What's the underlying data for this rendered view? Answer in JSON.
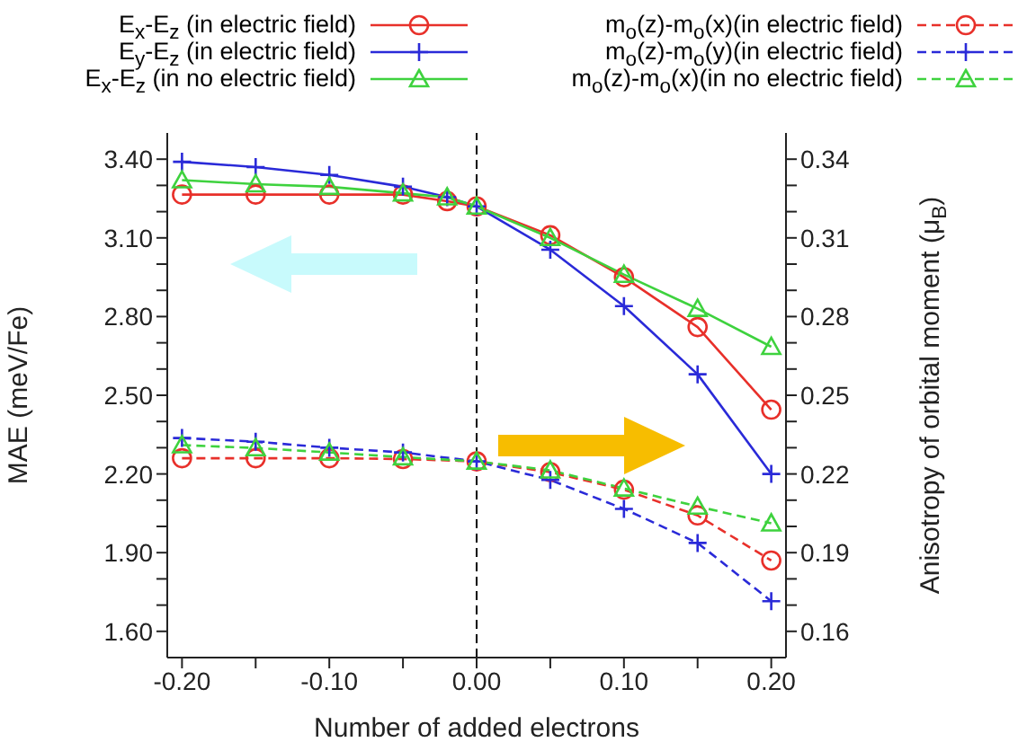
{
  "chart_data": {
    "type": "line",
    "xlabel": "Number of added electrons",
    "ylabel": "MAE (meV/Fe)",
    "y2label": "Anisotropy of orbital moment (μ$_{B}$)",
    "legend": "top",
    "xlim": [
      -0.21,
      0.21
    ],
    "xticks": [
      {
        "value": -0.2,
        "label": "-0.20"
      },
      {
        "value": -0.15,
        "label": null
      },
      {
        "value": -0.1,
        "label": "-0.10"
      },
      {
        "value": -0.05,
        "label": null
      },
      {
        "value": 0,
        "label": "0.00"
      },
      {
        "value": 0.05,
        "label": null
      },
      {
        "value": 0.1,
        "label": "0.10"
      },
      {
        "value": 0.15,
        "label": null
      },
      {
        "value": 0.2,
        "label": "0.20"
      }
    ],
    "ylim": [
      1.5,
      3.5
    ],
    "yticks": [
      {
        "value": 1.6,
        "label": "1.60"
      },
      {
        "value": 1.7,
        "label": null
      },
      {
        "value": 1.8,
        "label": null
      },
      {
        "value": 1.9,
        "label": "1.90"
      },
      {
        "value": 2.0,
        "label": null
      },
      {
        "value": 2.1,
        "label": null
      },
      {
        "value": 2.2,
        "label": "2.20"
      },
      {
        "value": 2.3,
        "label": null
      },
      {
        "value": 2.4,
        "label": null
      },
      {
        "value": 2.5,
        "label": "2.50"
      },
      {
        "value": 2.6,
        "label": null
      },
      {
        "value": 2.7,
        "label": null
      },
      {
        "value": 2.8,
        "label": "2.80"
      },
      {
        "value": 2.9,
        "label": null
      },
      {
        "value": 3.0,
        "label": null
      },
      {
        "value": 3.1,
        "label": "3.10"
      },
      {
        "value": 3.2,
        "label": null
      },
      {
        "value": 3.3,
        "label": null
      },
      {
        "value": 3.4,
        "label": "3.40"
      }
    ],
    "y2lim": [
      0.15,
      0.35
    ],
    "y2ticks": [
      0.16,
      {
        "value": 0.17,
        "label": null
      },
      {
        "value": 0.18,
        "label": null
      },
      0.19,
      {
        "value": 0.2,
        "label": null
      },
      {
        "value": 0.21,
        "label": null
      },
      0.22,
      {
        "value": 0.23,
        "label": null
      },
      {
        "value": 0.24,
        "label": null
      },
      0.25,
      {
        "value": 0.26,
        "label": null
      },
      {
        "value": 0.27,
        "label": null
      },
      0.28,
      {
        "value": 0.29,
        "label": null
      },
      {
        "value": 0.3,
        "label": null
      },
      0.31,
      {
        "value": 0.32,
        "label": null
      },
      {
        "value": 0.33,
        "label": null
      },
      0.34
    ],
    "ref_lines": [
      {
        "axis": "x",
        "value": 0,
        "color": "#000000",
        "line_style": "dashed"
      }
    ],
    "series": [
      {
        "name": "E$_{x}$-E$_{z}$ (in electric field)",
        "color": "#e8302a",
        "marker": "circle",
        "line_style": "solid",
        "x": [
          -0.2,
          -0.15,
          -0.1,
          -0.05,
          -0.02,
          0,
          0.05,
          0.1,
          0.15,
          0.2
        ],
        "values": [
          3.265,
          3.265,
          3.265,
          3.265,
          3.24,
          3.22,
          3.11,
          2.95,
          2.76,
          2.445
        ]
      },
      {
        "name": "E$_{y}$-E$_{z}$ (in electric field)",
        "color": "#2a2ad8",
        "marker": "cross",
        "line_style": "solid",
        "x": [
          -0.2,
          -0.15,
          -0.1,
          -0.05,
          -0.02,
          0,
          0.05,
          0.1,
          0.15,
          0.2
        ],
        "values": [
          3.39,
          3.37,
          3.34,
          3.295,
          3.255,
          3.22,
          3.055,
          2.84,
          2.58,
          2.2
        ]
      },
      {
        "name": "E$_{x}$-E$_{z}$ (in no electric field)",
        "color": "#3ed23e",
        "marker": "triangle",
        "line_style": "solid",
        "x": [
          -0.2,
          -0.15,
          -0.1,
          -0.05,
          -0.02,
          0,
          0.05,
          0.1,
          0.15,
          0.2
        ],
        "values": [
          3.32,
          3.305,
          3.295,
          3.27,
          3.255,
          3.22,
          3.1,
          2.96,
          2.83,
          2.685
        ]
      },
      {
        "name": "m$_{o}$(z)-m$_{o}$(x)(in electric field)",
        "color": "#e8302a",
        "marker": "circle",
        "line_style": "dashed",
        "axis": "y2",
        "x": [
          -0.2,
          -0.15,
          -0.1,
          -0.05,
          0,
          0.05,
          0.1,
          0.15,
          0.2
        ],
        "values": [
          0.226,
          0.226,
          0.226,
          0.2257,
          0.2248,
          0.2207,
          0.214,
          0.2042,
          0.187
        ]
      },
      {
        "name": "m$_{o}$(z)-m$_{o}$(y)(in electric field)",
        "color": "#2a2ad8",
        "marker": "cross",
        "line_style": "dashed",
        "axis": "y2",
        "x": [
          -0.2,
          -0.15,
          -0.1,
          -0.05,
          0,
          0.05,
          0.1,
          0.15,
          0.2
        ],
        "values": [
          0.2337,
          0.2323,
          0.23,
          0.2282,
          0.2248,
          0.2177,
          0.2067,
          0.1937,
          0.1715
        ]
      },
      {
        "name": "m$_{o}$(z)-m$_{o}$(x)(in no electric field)",
        "color": "#3ed23e",
        "marker": "triangle",
        "line_style": "dashed",
        "axis": "y2",
        "x": [
          -0.2,
          -0.15,
          -0.1,
          -0.05,
          0,
          0.05,
          0.1,
          0.15,
          0.2
        ],
        "values": [
          0.231,
          0.2299,
          0.2282,
          0.2264,
          0.2248,
          0.2214,
          0.2145,
          0.2076,
          0.2012
        ]
      }
    ]
  }
}
